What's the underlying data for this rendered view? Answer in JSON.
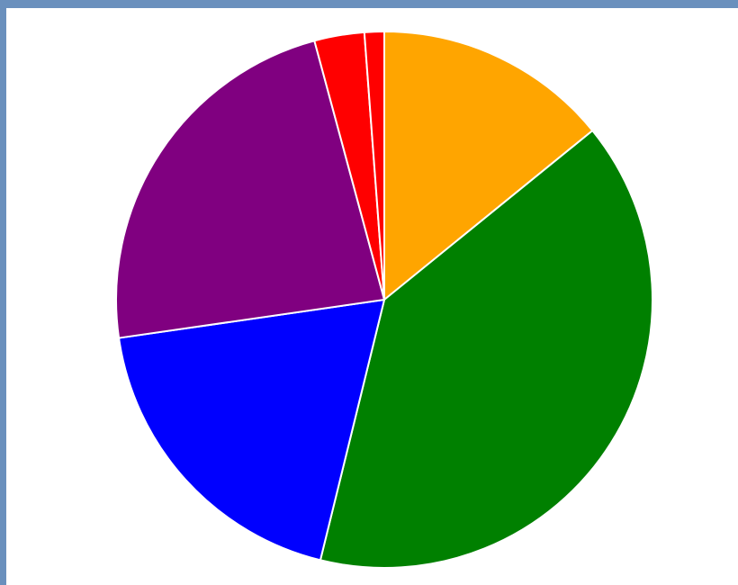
{
  "chart_data": {
    "type": "pie",
    "title": "",
    "start_angle": "12 o'clock",
    "direction": "clockwise",
    "edge_color": "#ffffff",
    "slices": [
      {
        "value": 15.5,
        "color": "#ffa500"
      },
      {
        "value": 43.5,
        "color": "#008000"
      },
      {
        "value": 20.7,
        "color": "#0000ff"
      },
      {
        "value": 25.3,
        "color": "#800080"
      },
      {
        "value": 3.3,
        "color": "#ff0000"
      },
      {
        "value": 1.3,
        "color": "#ff0000"
      }
    ]
  },
  "theme": {
    "frame_color": "#6a90bd",
    "background": "#ffffff"
  }
}
